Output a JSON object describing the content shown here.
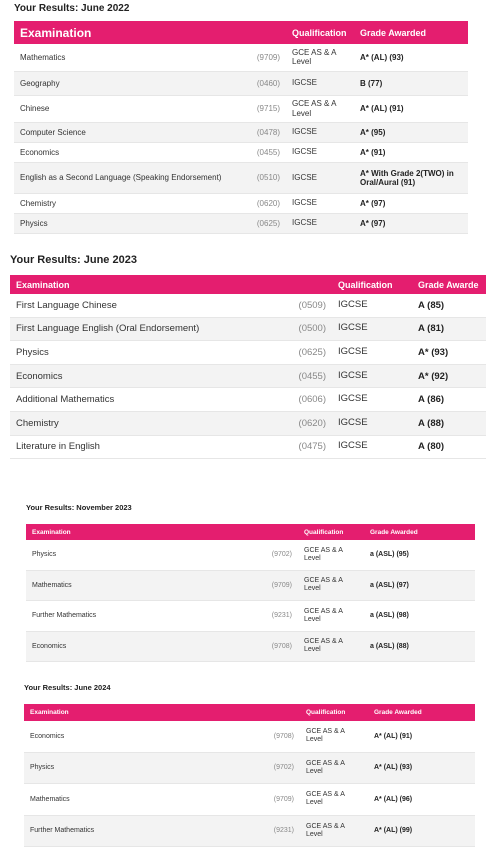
{
  "sections": [
    {
      "title": "Your Results: June 2022",
      "headers": [
        "Examination",
        "Qualification",
        "Grade Awarded"
      ],
      "rows": [
        {
          "exam": "Mathematics",
          "code": "(9709)",
          "qual": "GCE AS & A Level",
          "grade": "A* (AL) (93)"
        },
        {
          "exam": "Geography",
          "code": "(0460)",
          "qual": "IGCSE",
          "grade": "B (77)"
        },
        {
          "exam": "Chinese",
          "code": "(9715)",
          "qual": "GCE AS & A Level",
          "grade": "A* (AL) (91)"
        },
        {
          "exam": "Computer Science",
          "code": "(0478)",
          "qual": "IGCSE",
          "grade": "A* (95)"
        },
        {
          "exam": "Economics",
          "code": "(0455)",
          "qual": "IGCSE",
          "grade": "A* (91)"
        },
        {
          "exam": "English as a Second Language (Speaking Endorsement)",
          "code": "(0510)",
          "qual": "IGCSE",
          "grade": "A* With Grade 2(TWO) in Oral/Aural (91)"
        },
        {
          "exam": "Chemistry",
          "code": "(0620)",
          "qual": "IGCSE",
          "grade": "A* (97)"
        },
        {
          "exam": "Physics",
          "code": "(0625)",
          "qual": "IGCSE",
          "grade": "A* (97)"
        }
      ]
    },
    {
      "title": "Your Results: June 2023",
      "headers": [
        "Examination",
        "Qualification",
        "Grade Awarde"
      ],
      "rows": [
        {
          "exam": "First Language Chinese",
          "code": "(0509)",
          "qual": "IGCSE",
          "grade": "A (85)"
        },
        {
          "exam": "First Language English (Oral Endorsement)",
          "code": "(0500)",
          "qual": "IGCSE",
          "grade": "A (81)"
        },
        {
          "exam": "Physics",
          "code": "(0625)",
          "qual": "IGCSE",
          "grade": "A* (93)"
        },
        {
          "exam": "Economics",
          "code": "(0455)",
          "qual": "IGCSE",
          "grade": "A* (92)"
        },
        {
          "exam": "Additional Mathematics",
          "code": "(0606)",
          "qual": "IGCSE",
          "grade": "A (86)"
        },
        {
          "exam": "Chemistry",
          "code": "(0620)",
          "qual": "IGCSE",
          "grade": "A (88)"
        },
        {
          "exam": "Literature in English",
          "code": "(0475)",
          "qual": "IGCSE",
          "grade": "A (80)"
        }
      ]
    },
    {
      "title": "Your Results: November 2023",
      "headers": [
        "Examination",
        "Qualification",
        "Grade Awarded"
      ],
      "rows": [
        {
          "exam": "Physics",
          "code": "(9702)",
          "qual": "GCE AS & A Level",
          "grade": "a (ASL) (95)"
        },
        {
          "exam": "Mathematics",
          "code": "(9709)",
          "qual": "GCE AS & A Level",
          "grade": "a (ASL) (97)"
        },
        {
          "exam": "Further Mathematics",
          "code": "(9231)",
          "qual": "GCE AS & A Level",
          "grade": "a (ASL) (98)"
        },
        {
          "exam": "Economics",
          "code": "(9708)",
          "qual": "GCE AS & A Level",
          "grade": "a (ASL) (88)"
        }
      ]
    },
    {
      "title": "Your Results: June 2024",
      "headers": [
        "Examination",
        "Qualification",
        "Grade Awarded"
      ],
      "rows": [
        {
          "exam": "Economics",
          "code": "(9708)",
          "qual": "GCE AS & A Level",
          "grade": "A* (AL) (91)"
        },
        {
          "exam": "Physics",
          "code": "(9702)",
          "qual": "GCE AS & A Level",
          "grade": "A* (AL) (93)"
        },
        {
          "exam": "Mathematics",
          "code": "(9709)",
          "qual": "GCE AS & A Level",
          "grade": "A* (AL) (96)"
        },
        {
          "exam": "Further Mathematics",
          "code": "(9231)",
          "qual": "GCE AS & A Level",
          "grade": "A* (AL) (99)"
        }
      ]
    }
  ]
}
